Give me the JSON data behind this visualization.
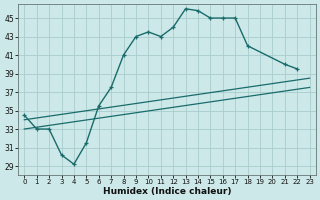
{
  "bg_color": "#cce8e8",
  "grid_color": "#aacccc",
  "line_color": "#1a6b6b",
  "xlabel": "Humidex (Indice chaleur)",
  "xlim": [
    -0.5,
    23.5
  ],
  "ylim": [
    28,
    46.5
  ],
  "xticks": [
    0,
    1,
    2,
    3,
    4,
    5,
    6,
    7,
    8,
    9,
    10,
    11,
    12,
    13,
    14,
    15,
    16,
    17,
    18,
    19,
    20,
    21,
    22,
    23
  ],
  "yticks": [
    29,
    31,
    33,
    35,
    37,
    39,
    41,
    43,
    45
  ],
  "line1_x": [
    0,
    1,
    2,
    3,
    4,
    5,
    6,
    7,
    8,
    9,
    10,
    11,
    12,
    13,
    14,
    15,
    16,
    17,
    18,
    21,
    22
  ],
  "line1_y": [
    34.5,
    33,
    33,
    30.2,
    29.2,
    31.5,
    35.5,
    37.5,
    41,
    43,
    43.5,
    43,
    44,
    46,
    45.8,
    45,
    45,
    45,
    42,
    40,
    39.5
  ],
  "line2_x": [
    0,
    23
  ],
  "line2_y": [
    34.0,
    38.5
  ],
  "line3_x": [
    0,
    23
  ],
  "line3_y": [
    33.0,
    37.5
  ]
}
